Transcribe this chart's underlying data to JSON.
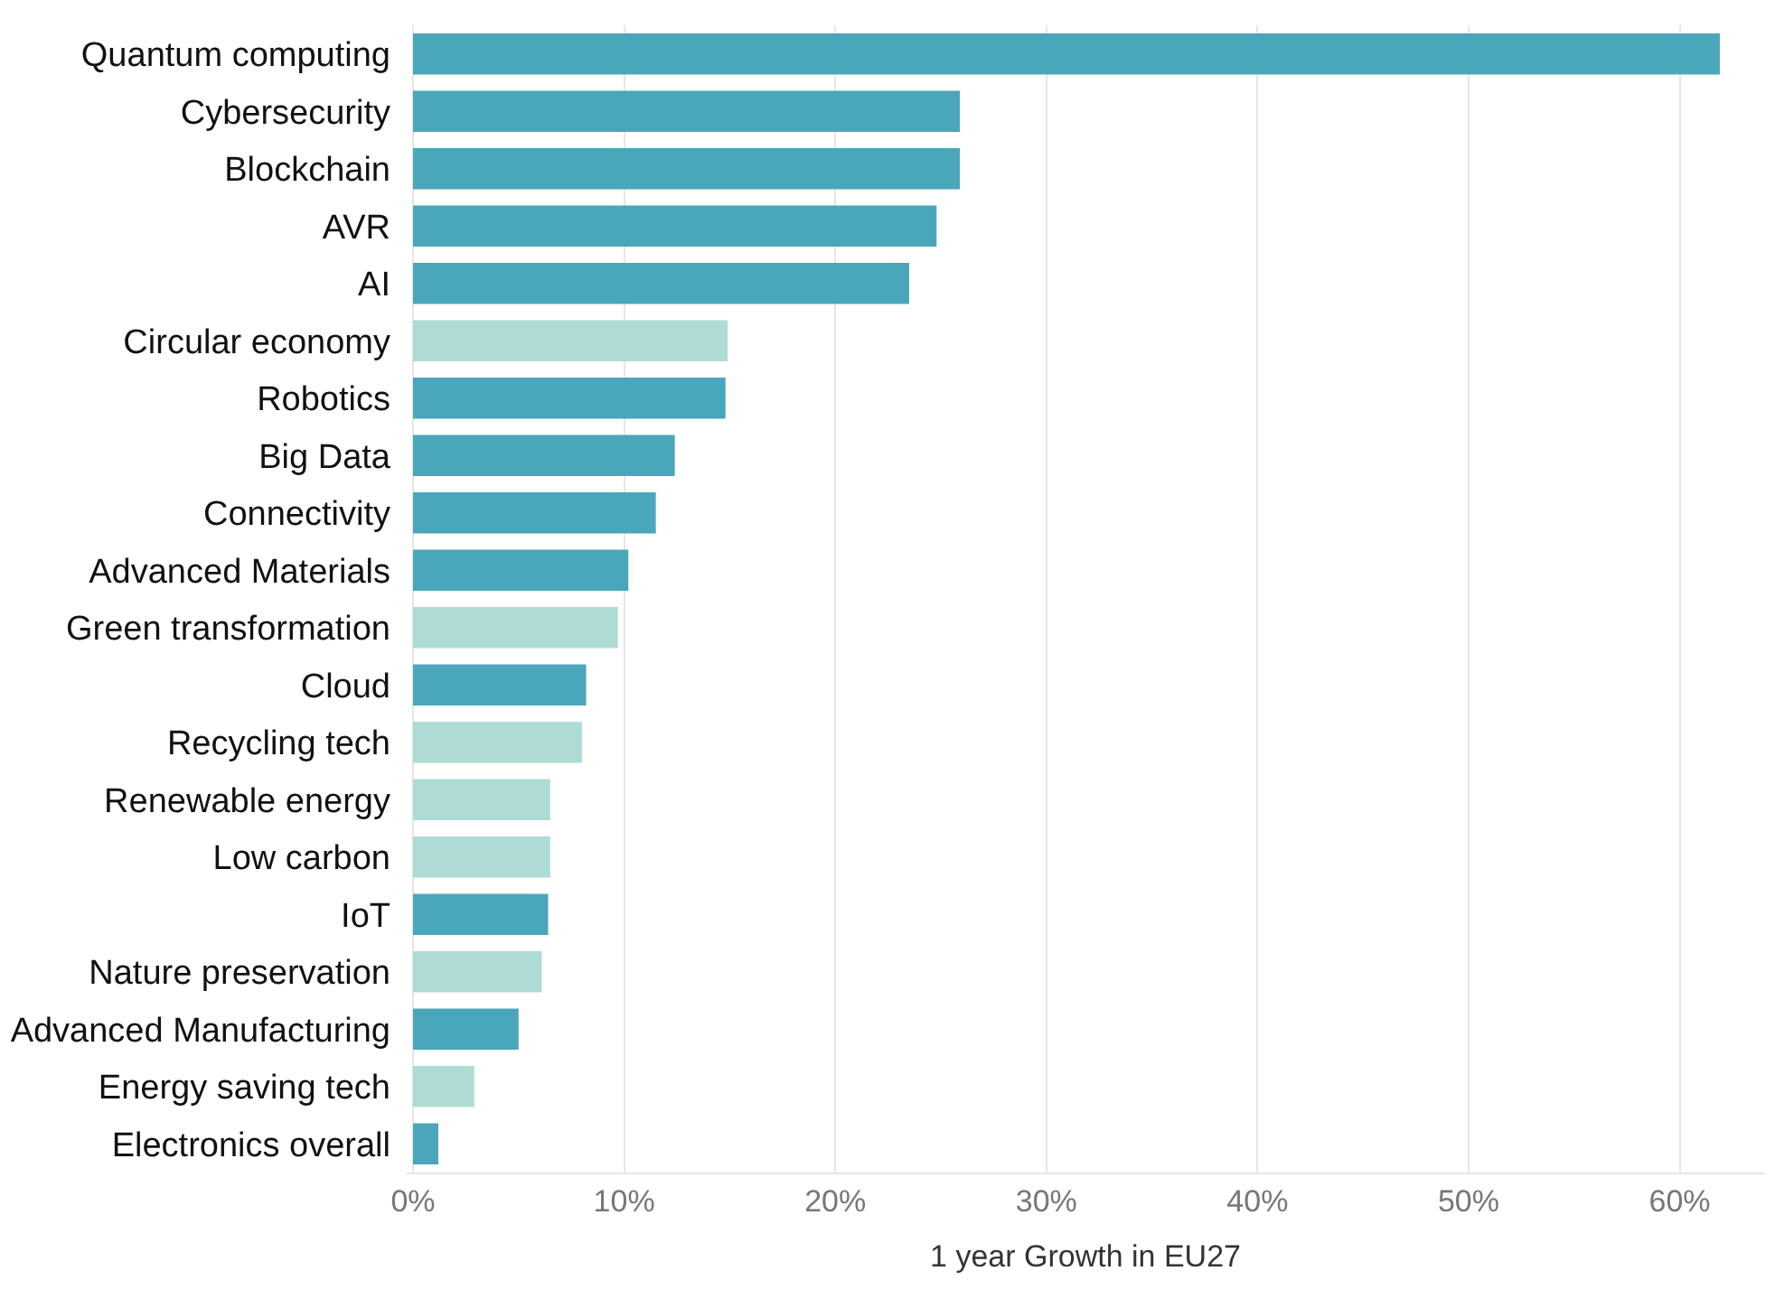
{
  "chart_data": {
    "type": "bar",
    "orientation": "horizontal",
    "xlabel": "1 year Growth in EU27",
    "categories": [
      "Quantum computing",
      "Cybersecurity",
      "Blockchain",
      "AVR",
      "AI",
      "Circular economy",
      "Robotics",
      "Big Data",
      "Connectivity",
      "Advanced Materials",
      "Green transformation",
      "Cloud",
      "Recycling tech",
      "Renewable energy",
      "Low carbon",
      "IoT",
      "Nature preservation",
      "Advanced Manufacturing",
      "Energy saving tech",
      "Electronics overall"
    ],
    "values": [
      61.9,
      25.9,
      25.9,
      24.8,
      23.5,
      14.9,
      14.8,
      12.4,
      11.5,
      10.2,
      9.7,
      8.2,
      8.0,
      6.5,
      6.5,
      6.4,
      6.1,
      5.0,
      2.9,
      1.2
    ],
    "colors": [
      "#4aa6ba",
      "#4aa6ba",
      "#4aa6ba",
      "#4aa6ba",
      "#4aa6ba",
      "#addcd4",
      "#4aa6ba",
      "#4aa6ba",
      "#4aa6ba",
      "#4aa6ba",
      "#addcd4",
      "#4aa6ba",
      "#addcd4",
      "#addcd4",
      "#addcd4",
      "#4aa6ba",
      "#addcd4",
      "#4aa6ba",
      "#addcd4",
      "#4aa6ba"
    ],
    "xlim": [
      -0.3,
      64
    ],
    "xticks": [
      {
        "value": 0,
        "label": "0%"
      },
      {
        "value": 10,
        "label": "10%"
      },
      {
        "value": 20,
        "label": "20%"
      },
      {
        "value": 30,
        "label": "30%"
      },
      {
        "value": 40,
        "label": "40%"
      },
      {
        "value": 50,
        "label": "50%"
      },
      {
        "value": 60,
        "label": "60%"
      }
    ],
    "grid": "x"
  }
}
